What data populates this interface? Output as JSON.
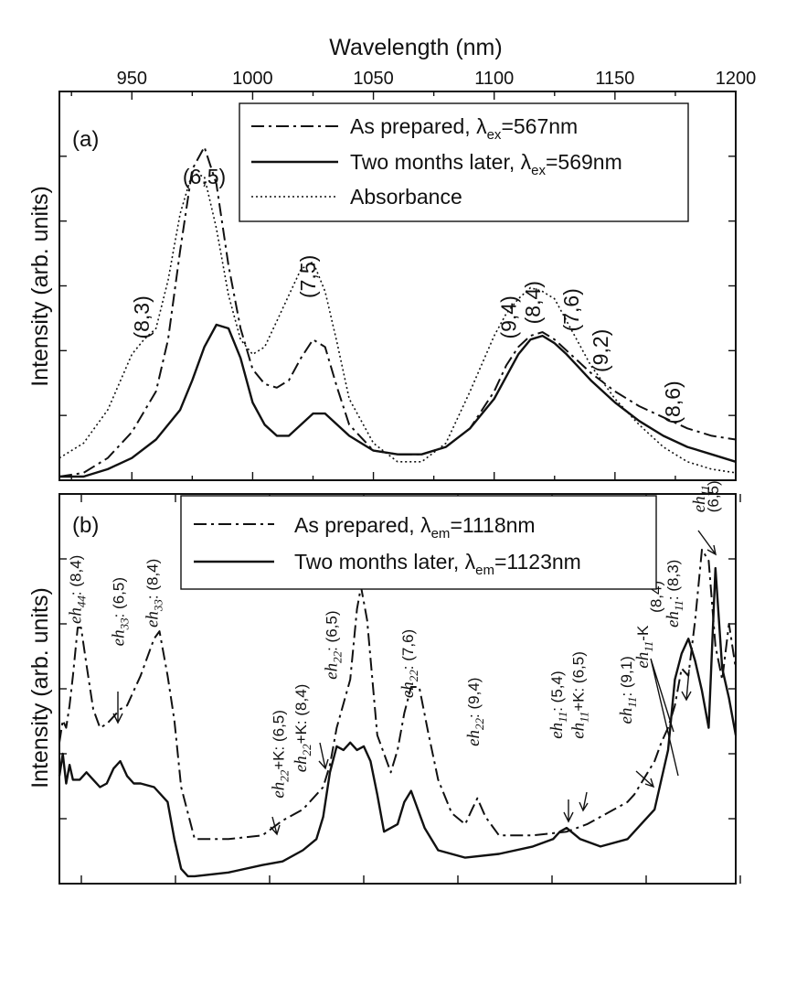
{
  "chart_data": [
    {
      "id": "a",
      "type": "line",
      "panel_label": "(a)",
      "xlabel": "Wavelength (nm)",
      "ylabel": "Intensity (arb. units)",
      "xlim": [
        920,
        1200
      ],
      "ylim": [
        0,
        1.05
      ],
      "x_ticks": [
        950,
        1000,
        1050,
        1100,
        1150,
        1200
      ],
      "x_tick_labels": [
        "950",
        "1000",
        "1050",
        "1100",
        "1150",
        "1200"
      ],
      "legend": {
        "position": "top-right",
        "entries": [
          {
            "series": "As prepared",
            "label": "As prepared, λ",
            "sub": "ex",
            "suffix": "=567nm",
            "style": "dashdot"
          },
          {
            "series": "Two months later",
            "label": "Two months later, λ",
            "sub": "ex",
            "suffix": "=569nm",
            "style": "solid"
          },
          {
            "series": "Absorbance",
            "label": "Absorbance",
            "sub": "",
            "suffix": "",
            "style": "dotted"
          }
        ]
      },
      "annotations": [
        {
          "text": "(8,3)",
          "x": 957,
          "y": 0.44,
          "rotated": true
        },
        {
          "text": "(6,5)",
          "x": 980,
          "y": 0.8,
          "rotated": false
        },
        {
          "text": "(7,5)",
          "x": 1026,
          "y": 0.55,
          "rotated": true
        },
        {
          "text": "(9,4)",
          "x": 1109,
          "y": 0.44,
          "rotated": true
        },
        {
          "text": "(8,4)",
          "x": 1119,
          "y": 0.48,
          "rotated": true
        },
        {
          "text": "(7,6)",
          "x": 1135,
          "y": 0.46,
          "rotated": true
        },
        {
          "text": "(9,2)",
          "x": 1147,
          "y": 0.35,
          "rotated": true
        },
        {
          "text": "(8,6)",
          "x": 1177,
          "y": 0.21,
          "rotated": true
        }
      ],
      "series": [
        {
          "name": "As prepared",
          "style": "dashdot",
          "x": [
            920,
            930,
            940,
            950,
            960,
            965,
            970,
            975,
            980,
            985,
            990,
            995,
            1000,
            1005,
            1010,
            1015,
            1020,
            1025,
            1030,
            1035,
            1040,
            1050,
            1060,
            1070,
            1080,
            1090,
            1100,
            1105,
            1110,
            1115,
            1120,
            1125,
            1130,
            1140,
            1150,
            1160,
            1170,
            1180,
            1190,
            1200
          ],
          "y": [
            0.01,
            0.02,
            0.06,
            0.13,
            0.24,
            0.38,
            0.62,
            0.84,
            0.9,
            0.8,
            0.58,
            0.41,
            0.3,
            0.26,
            0.25,
            0.27,
            0.33,
            0.38,
            0.36,
            0.25,
            0.15,
            0.08,
            0.07,
            0.07,
            0.09,
            0.14,
            0.24,
            0.31,
            0.36,
            0.39,
            0.4,
            0.38,
            0.35,
            0.29,
            0.24,
            0.2,
            0.17,
            0.14,
            0.12,
            0.11
          ]
        },
        {
          "name": "Two months later",
          "style": "solid",
          "x": [
            920,
            930,
            940,
            950,
            960,
            970,
            975,
            980,
            985,
            990,
            995,
            1000,
            1005,
            1010,
            1015,
            1020,
            1025,
            1030,
            1035,
            1040,
            1050,
            1060,
            1070,
            1080,
            1090,
            1100,
            1105,
            1110,
            1115,
            1120,
            1125,
            1130,
            1140,
            1150,
            1160,
            1170,
            1180,
            1190,
            1200
          ],
          "y": [
            0.01,
            0.01,
            0.03,
            0.06,
            0.11,
            0.19,
            0.27,
            0.36,
            0.42,
            0.41,
            0.33,
            0.21,
            0.15,
            0.12,
            0.12,
            0.15,
            0.18,
            0.18,
            0.15,
            0.12,
            0.08,
            0.07,
            0.07,
            0.09,
            0.14,
            0.22,
            0.28,
            0.34,
            0.38,
            0.39,
            0.37,
            0.34,
            0.27,
            0.21,
            0.16,
            0.12,
            0.09,
            0.07,
            0.05
          ]
        },
        {
          "name": "Absorbance",
          "style": "dotted",
          "x": [
            920,
            930,
            940,
            950,
            955,
            960,
            965,
            970,
            975,
            980,
            985,
            990,
            995,
            1000,
            1005,
            1010,
            1015,
            1020,
            1025,
            1030,
            1035,
            1040,
            1050,
            1060,
            1070,
            1080,
            1090,
            1100,
            1105,
            1110,
            1115,
            1120,
            1125,
            1130,
            1140,
            1150,
            1160,
            1170,
            1180,
            1190,
            1200
          ],
          "y": [
            0.06,
            0.1,
            0.19,
            0.34,
            0.38,
            0.41,
            0.54,
            0.72,
            0.83,
            0.82,
            0.68,
            0.5,
            0.38,
            0.34,
            0.36,
            0.43,
            0.5,
            0.57,
            0.59,
            0.51,
            0.37,
            0.22,
            0.1,
            0.05,
            0.05,
            0.1,
            0.24,
            0.39,
            0.45,
            0.49,
            0.52,
            0.51,
            0.49,
            0.43,
            0.31,
            0.22,
            0.15,
            0.09,
            0.05,
            0.03,
            0.02
          ]
        }
      ]
    },
    {
      "id": "b",
      "type": "line",
      "panel_label": "(b)",
      "xlabel": "",
      "ylabel": "Intensity (arb. units)",
      "xlim": [
        0,
        100
      ],
      "ylim": [
        0,
        1.05
      ],
      "legend": {
        "position": "top-center",
        "entries": [
          {
            "series": "As prepared",
            "label": "As prepared, λ",
            "sub": "em",
            "suffix": "=1118nm",
            "style": "dashdot"
          },
          {
            "series": "Two months later",
            "label": "Two months later, λ",
            "sub": "em",
            "suffix": "=1123nm",
            "style": "solid"
          }
        ]
      },
      "annotations": [
        {
          "it": "eh",
          "sub": "44",
          "rest": ": (8,4)",
          "x": 3.2,
          "y": 0.7
        },
        {
          "it": "eh",
          "sub": "33",
          "rest": ": (6,5)",
          "x": 9.5,
          "y": 0.64
        },
        {
          "it": "eh",
          "sub": "33",
          "rest": ": (8,4)",
          "x": 14.5,
          "y": 0.69
        },
        {
          "it": "eh",
          "sub": "22",
          "rest": "+K: (6,5)",
          "x": 33.2,
          "y": 0.23
        },
        {
          "it": "eh",
          "sub": "22",
          "rest": "+K: (8,4)",
          "x": 36.5,
          "y": 0.3
        },
        {
          "it": "eh",
          "sub": "22",
          "rest": ": (6,5)",
          "x": 41.0,
          "y": 0.55
        },
        {
          "it": "eh",
          "sub": "22",
          "rest": "",
          "x": 44.6,
          "y": 0.85
        },
        {
          "it": "",
          "sub": "",
          "rest": "(8,4)",
          "x": 47.4,
          "y": 0.85
        },
        {
          "it": "eh",
          "sub": "22",
          "rest": ": (7,6)",
          "x": 52.3,
          "y": 0.5
        },
        {
          "it": "eh",
          "sub": "22",
          "rest": ": (9,4)",
          "x": 62.0,
          "y": 0.37
        },
        {
          "it": "eh",
          "sub": "11",
          "rest": ": (5,4)",
          "x": 74.3,
          "y": 0.39
        },
        {
          "it": "eh",
          "sub": "11",
          "rest": "+K: (6,5)",
          "x": 77.5,
          "y": 0.39
        },
        {
          "it": "eh",
          "sub": "11",
          "rest": ": (9,1)",
          "x": 84.6,
          "y": 0.43
        },
        {
          "it": "eh",
          "sub": "11",
          "rest": "-K",
          "x": 87.0,
          "y": 0.58
        },
        {
          "it": "",
          "sub": "",
          "rest": "(8,4)",
          "x": 89.0,
          "y": 0.73
        },
        {
          "it": "eh",
          "sub": "11",
          "rest": ": (8,3)",
          "x": 91.5,
          "y": 0.69
        },
        {
          "it": "eh",
          "sub": "11",
          "rest": "",
          "x": 95.4,
          "y": 1.0
        },
        {
          "it": "",
          "sub": "",
          "rest": "(6,5)",
          "x": 97.4,
          "y": 1.0
        }
      ],
      "series": [
        {
          "name": "As prepared",
          "style": "dashdot",
          "x": [
            0,
            0.5,
            1,
            1.5,
            2,
            2.7,
            3.2,
            4,
            5,
            6,
            7,
            8,
            9,
            10,
            12,
            14,
            14.8,
            16,
            17,
            18,
            20,
            25,
            30,
            33,
            36,
            39,
            40,
            41,
            43,
            44,
            44.6,
            45.5,
            47,
            49,
            50,
            51,
            52,
            53.2,
            54.5,
            56,
            58,
            60,
            61,
            61.8,
            63,
            65,
            70,
            75,
            78,
            80,
            82,
            84,
            85,
            86,
            87,
            88,
            89,
            90,
            91,
            92,
            93,
            94,
            95,
            96,
            97,
            98,
            99,
            100
          ],
          "y": [
            0.38,
            0.44,
            0.42,
            0.48,
            0.56,
            0.69,
            0.69,
            0.59,
            0.47,
            0.42,
            0.43,
            0.45,
            0.47,
            0.48,
            0.56,
            0.66,
            0.68,
            0.56,
            0.44,
            0.26,
            0.12,
            0.12,
            0.13,
            0.17,
            0.2,
            0.26,
            0.32,
            0.42,
            0.55,
            0.74,
            0.8,
            0.71,
            0.4,
            0.3,
            0.36,
            0.46,
            0.53,
            0.53,
            0.41,
            0.28,
            0.19,
            0.16,
            0.2,
            0.23,
            0.18,
            0.13,
            0.13,
            0.14,
            0.16,
            0.18,
            0.2,
            0.22,
            0.24,
            0.27,
            0.3,
            0.33,
            0.38,
            0.42,
            0.48,
            0.58,
            0.56,
            0.71,
            0.9,
            0.87,
            0.64,
            0.55,
            0.7,
            0.58
          ]
        },
        {
          "name": "Two months later",
          "style": "solid",
          "x": [
            0,
            0.5,
            1,
            1.5,
            2,
            3,
            4,
            5,
            6,
            7,
            8,
            9,
            10,
            11,
            12,
            14,
            16,
            17,
            18,
            19,
            20,
            25,
            30,
            33,
            36,
            38,
            39,
            40,
            41,
            42,
            43,
            44,
            45,
            46,
            47,
            48,
            50,
            51,
            52,
            53,
            54,
            56,
            60,
            65,
            70,
            73,
            74,
            75,
            77,
            80,
            84,
            86,
            88,
            89,
            90,
            91,
            92,
            93,
            94,
            95,
            96,
            97,
            98,
            99,
            100
          ],
          "y": [
            0.29,
            0.35,
            0.27,
            0.32,
            0.28,
            0.28,
            0.3,
            0.28,
            0.26,
            0.27,
            0.31,
            0.33,
            0.29,
            0.27,
            0.27,
            0.26,
            0.22,
            0.12,
            0.04,
            0.02,
            0.02,
            0.03,
            0.05,
            0.06,
            0.09,
            0.12,
            0.18,
            0.3,
            0.37,
            0.36,
            0.38,
            0.36,
            0.37,
            0.33,
            0.24,
            0.14,
            0.16,
            0.22,
            0.25,
            0.2,
            0.15,
            0.09,
            0.07,
            0.08,
            0.1,
            0.12,
            0.14,
            0.15,
            0.12,
            0.1,
            0.12,
            0.16,
            0.2,
            0.28,
            0.36,
            0.55,
            0.62,
            0.66,
            0.6,
            0.52,
            0.42,
            0.85,
            0.58,
            0.5,
            0.4
          ]
        }
      ]
    }
  ]
}
